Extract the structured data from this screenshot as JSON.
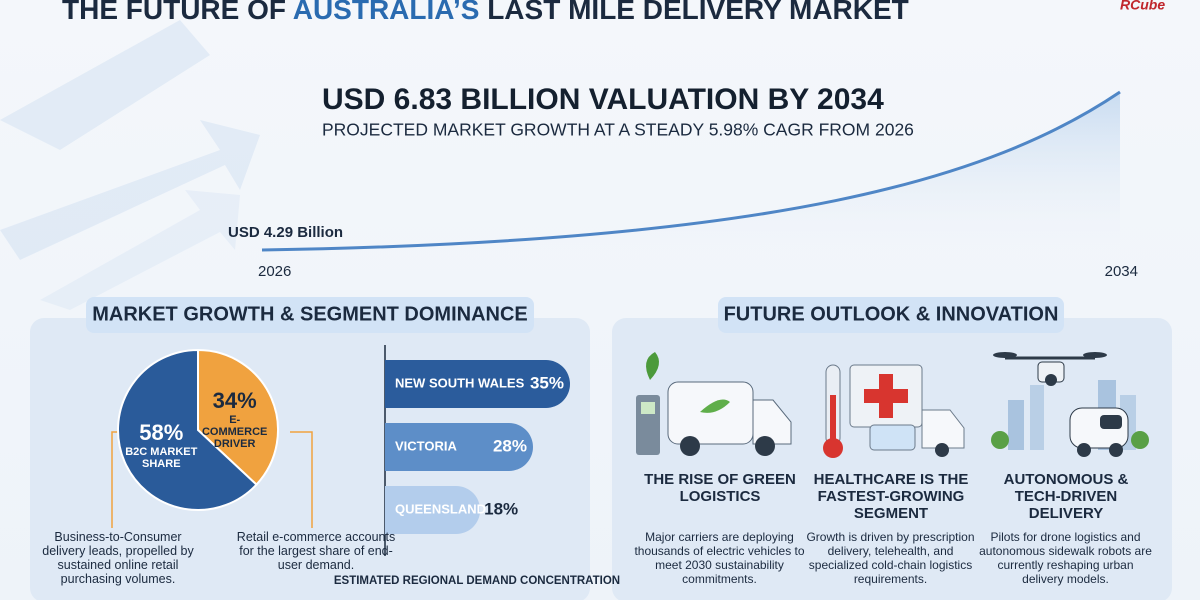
{
  "brand": "RCube",
  "title_parts": [
    "THE FUTURE OF ",
    "AUSTRALIA’S",
    " LAST MILE DELIVERY MARKET"
  ],
  "chart_data": [
    {
      "type": "line",
      "title": "USD 6.83 BILLION VALUATION BY 2034",
      "subtitle": "PROJECTED MARKET GROWTH AT A STEADY 5.98% CAGR FROM 2026",
      "x": [
        2026,
        2034
      ],
      "values": [
        4.29,
        6.83
      ],
      "value_labels": [
        "USD 4.29 Billion",
        null
      ],
      "color": "#4f86c6"
    },
    {
      "type": "pie",
      "title": "MARKET GROWTH & SEGMENT DOMINANCE",
      "categories": [
        "B2C MARKET SHARE",
        "E-COMMERCE DRIVER"
      ],
      "values": [
        58,
        34
      ],
      "value_labels": [
        "58%",
        "34%"
      ],
      "colors": [
        "#2a5b9a",
        "#f0a23f"
      ],
      "descriptions": [
        "Business-to-Consumer delivery leads, propelled by sustained online retail purchasing volumes.",
        "Retail e-commerce accounts for the largest share of end-user demand."
      ]
    },
    {
      "type": "hbar",
      "caption": "ESTIMATED REGIONAL DEMAND CONCENTRATION",
      "categories": [
        "NEW SOUTH WALES",
        "VICTORIA",
        "QUEENSLAND"
      ],
      "values": [
        35,
        28,
        18
      ],
      "value_labels": [
        "35%",
        "28%",
        "18%"
      ],
      "colors": [
        "#2b5c9c",
        "#5d8ec8",
        "#b3cdec"
      ]
    }
  ],
  "outlook": {
    "title": "FUTURE OUTLOOK & INNOVATION",
    "cards": [
      {
        "title": "THE RISE OF GREEN LOGISTICS",
        "text": "Major carriers are deploying thousands of electric vehicles to meet 2030 sustainability commitments."
      },
      {
        "title": "HEALTHCARE IS THE FASTEST-GROWING SEGMENT",
        "text": "Growth is driven by prescription delivery, telehealth, and specialized cold-chain logistics requirements."
      },
      {
        "title": "AUTONOMOUS & TECH-DRIVEN DELIVERY",
        "text": "Pilots for drone logistics and autonomous sidewalk robots are currently reshaping urban delivery models."
      }
    ]
  }
}
